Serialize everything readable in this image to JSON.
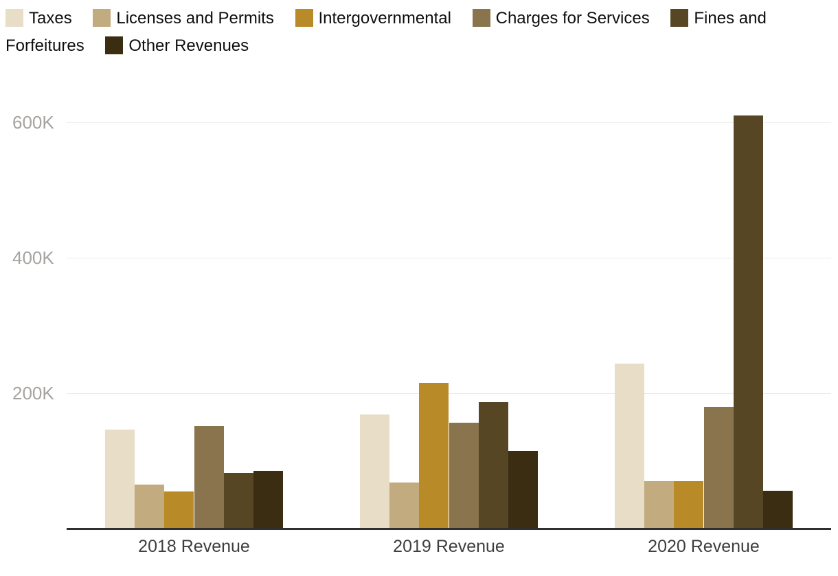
{
  "legend": {
    "items": [
      {
        "label": "Taxes",
        "color": "#e8ddc7"
      },
      {
        "label": "Licenses and Permits",
        "color": "#c3ab80"
      },
      {
        "label": "Intergovernmental",
        "color": "#b98b28"
      },
      {
        "label": "Charges for Services",
        "color": "#8a744e"
      },
      {
        "label": "Fines and Forfeitures",
        "color": "#574624"
      },
      {
        "label": "Other Revenues",
        "color": "#3a2d12"
      }
    ]
  },
  "chart_data": {
    "type": "bar",
    "title": "",
    "xlabel": "",
    "ylabel": "",
    "categories": [
      "2018 Revenue",
      "2019 Revenue",
      "2020 Revenue"
    ],
    "series": [
      {
        "name": "Taxes",
        "color": "#e8ddc7",
        "values": [
          146000,
          169000,
          244000
        ]
      },
      {
        "name": "Licenses and Permits",
        "color": "#c3ab80",
        "values": [
          65000,
          68000,
          70000
        ]
      },
      {
        "name": "Intergovernmental",
        "color": "#b98b28",
        "values": [
          55000,
          215000,
          70000
        ]
      },
      {
        "name": "Charges for Services",
        "color": "#8a744e",
        "values": [
          151000,
          156000,
          180000
        ]
      },
      {
        "name": "Fines and Forfeitures",
        "color": "#574624",
        "values": [
          82000,
          187000,
          610000
        ]
      },
      {
        "name": "Other Revenues",
        "color": "#3a2d12",
        "values": [
          85000,
          115000,
          56000
        ]
      }
    ],
    "ylim": [
      0,
      640000
    ],
    "yticks": [
      {
        "value": 200000,
        "label": "200K"
      },
      {
        "value": 400000,
        "label": "400K"
      },
      {
        "value": 600000,
        "label": "600K"
      }
    ],
    "grid": true,
    "legend_position": "top",
    "colors": {
      "gridline": "#ebebeb",
      "axis_line": "#2f2f2f",
      "tick_label": "#a6a3a0",
      "category_label": "#3e3e3e",
      "legend_text": "#0e0e0e"
    }
  }
}
